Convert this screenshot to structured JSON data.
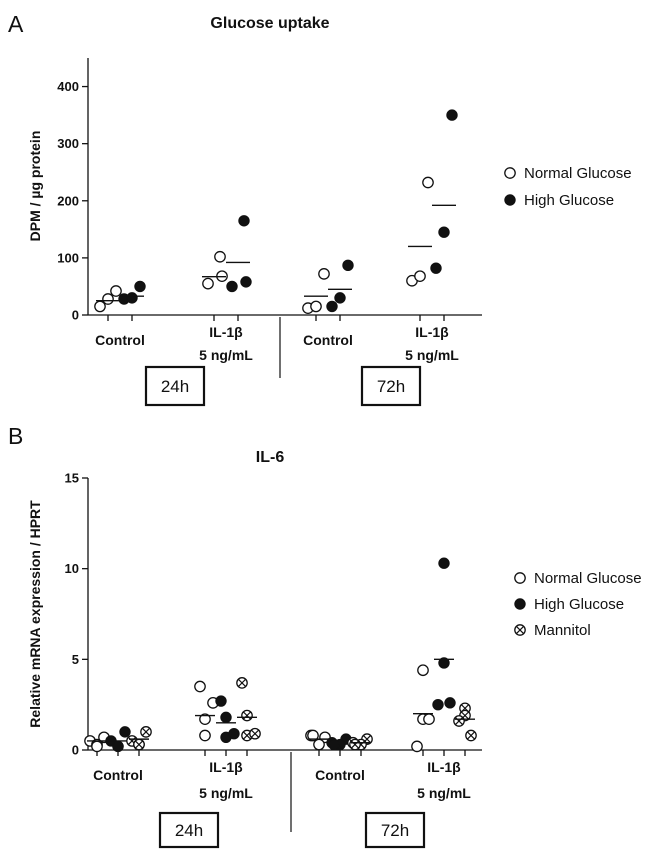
{
  "chart_data": [
    {
      "type": "scatter",
      "panel": "A",
      "title": "Glucose uptake",
      "ylabel": "DPM / µg protein",
      "ylim": [
        0,
        450
      ],
      "yticks": [
        "0",
        "100",
        "200",
        "300",
        "400"
      ],
      "categories": [
        "Control",
        "IL-1β\n5 ng/mL",
        "Control",
        "IL-1β\n5 ng/mL"
      ],
      "time_groups": [
        "24h",
        "72h"
      ],
      "legend": [
        "Normal Glucose",
        "High Glucose"
      ],
      "legend_position": "right",
      "series": [
        {
          "name": "Normal Glucose",
          "marker": "open",
          "points": [
            [
              15,
              28,
              42
            ],
            [
              55,
              68,
              102
            ],
            [
              12,
              15,
              72
            ],
            [
              60,
              68,
              232
            ]
          ],
          "means": [
            25,
            67,
            33,
            120
          ]
        },
        {
          "name": "High Glucose",
          "marker": "filled",
          "points": [
            [
              28,
              30,
              50
            ],
            [
              50,
              58,
              165
            ],
            [
              15,
              30,
              87
            ],
            [
              82,
              145,
              350
            ]
          ],
          "means": [
            33,
            92,
            45,
            192
          ]
        }
      ]
    },
    {
      "type": "scatter",
      "panel": "B",
      "title": "IL-6",
      "ylabel": "Relative mRNA expression / HPRT",
      "ylim": [
        0,
        15
      ],
      "yticks": [
        "0",
        "5",
        "10",
        "15"
      ],
      "categories": [
        "Control",
        "IL-1β\n5 ng/mL",
        "Control",
        "IL-1β\n5 ng/mL"
      ],
      "time_groups": [
        "24h",
        "72h"
      ],
      "legend": [
        "Normal Glucose",
        "High Glucose",
        "Mannitol"
      ],
      "legend_position": "right",
      "series": [
        {
          "name": "Normal Glucose",
          "marker": "open",
          "points": [
            [
              0.5,
              0.7,
              0.3,
              0.2
            ],
            [
              3.5,
              1.7,
              0.8,
              2.6
            ],
            [
              0.8,
              0.7,
              0.3,
              0.8
            ],
            [
              4.4,
              1.7,
              0.2,
              1.7
            ]
          ],
          "means": [
            0.5,
            1.9,
            0.6,
            2.0
          ]
        },
        {
          "name": "High Glucose",
          "marker": "filled",
          "points": [
            [
              0.5,
              1.0,
              0.2,
              0.2
            ],
            [
              2.7,
              1.8,
              0.7,
              0.9
            ],
            [
              0.4,
              0.6,
              0.3,
              0.3
            ],
            [
              10.3,
              4.8,
              2.5,
              2.6
            ]
          ],
          "means": [
            0.5,
            1.5,
            0.4,
            5.0
          ]
        },
        {
          "name": "Mannitol",
          "marker": "crossed",
          "points": [
            [
              0.5,
              1.0,
              0.3,
              0.3
            ],
            [
              3.7,
              1.9,
              0.8,
              0.9
            ],
            [
              0.4,
              0.6,
              0.3,
              0.3
            ],
            [
              2.3,
              1.9,
              1.6,
              0.8
            ]
          ],
          "means": [
            0.6,
            1.8,
            0.4,
            1.7
          ]
        }
      ]
    }
  ]
}
